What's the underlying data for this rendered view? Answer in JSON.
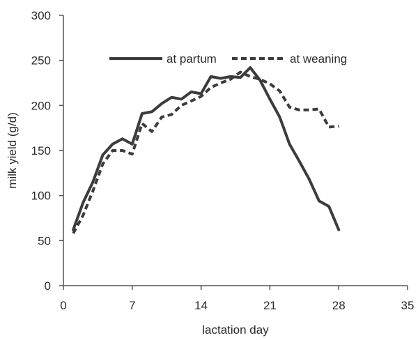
{
  "chart_data": {
    "type": "line",
    "xlabel": "lactation day",
    "ylabel": "milk yield (g/d)",
    "xlim": [
      0,
      35
    ],
    "ylim": [
      0,
      300
    ],
    "xticks": [
      0,
      7,
      14,
      21,
      28,
      35
    ],
    "yticks": [
      0,
      50,
      100,
      150,
      200,
      250,
      300
    ],
    "grid": false,
    "legend_position": "top-center",
    "series": [
      {
        "name": "at partum",
        "style": "solid",
        "color": "#3c3c3c",
        "x": [
          1,
          2,
          3,
          4,
          5,
          6,
          7,
          8,
          9,
          10,
          11,
          12,
          13,
          14,
          15,
          16,
          17,
          18,
          19,
          20,
          21,
          22,
          23,
          24,
          25,
          26,
          27,
          28
        ],
        "y": [
          62,
          92,
          115,
          145,
          157,
          163,
          157,
          191,
          193,
          202,
          209,
          207,
          215,
          213,
          232,
          230,
          232,
          231,
          242,
          228,
          207,
          187,
          157,
          138,
          118,
          94,
          88,
          62
        ]
      },
      {
        "name": "at weaning",
        "style": "dashed",
        "color": "#3c3c3c",
        "x": [
          1,
          2,
          3,
          4,
          5,
          6,
          7,
          8,
          9,
          10,
          11,
          12,
          13,
          14,
          15,
          16,
          17,
          18,
          19,
          20,
          21,
          22,
          23,
          24,
          25,
          26,
          27,
          28
        ],
        "y": [
          58,
          78,
          105,
          135,
          150,
          150,
          146,
          180,
          171,
          187,
          190,
          200,
          205,
          210,
          220,
          225,
          229,
          237,
          232,
          229,
          224,
          216,
          198,
          195,
          195,
          196,
          176,
          177
        ]
      }
    ]
  }
}
